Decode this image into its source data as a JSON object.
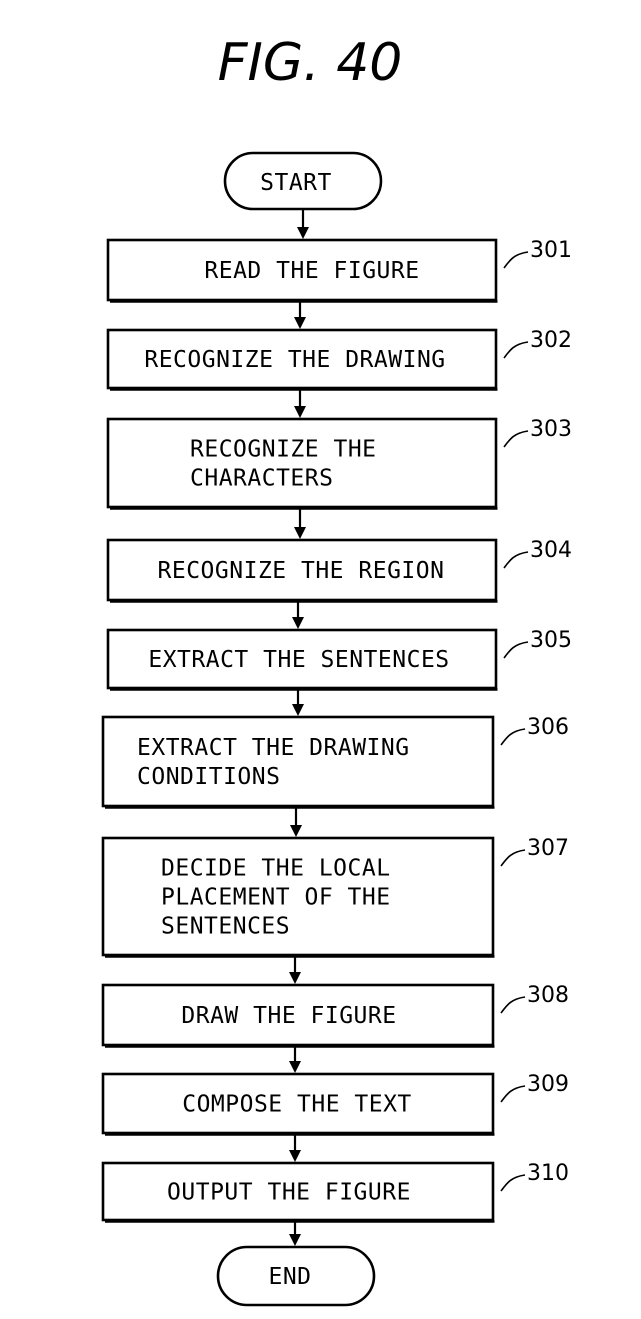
{
  "figure": {
    "title": "FIG. 40"
  },
  "flow": {
    "start_label": "START",
    "end_label": "END",
    "steps": [
      {
        "ref": "301",
        "lines": [
          "READ THE FIGURE"
        ]
      },
      {
        "ref": "302",
        "lines": [
          "RECOGNIZE THE DRAWING"
        ]
      },
      {
        "ref": "303",
        "lines": [
          "RECOGNIZE THE",
          "CHARACTERS"
        ]
      },
      {
        "ref": "304",
        "lines": [
          "RECOGNIZE THE REGION"
        ]
      },
      {
        "ref": "305",
        "lines": [
          "EXTRACT THE SENTENCES"
        ]
      },
      {
        "ref": "306",
        "lines": [
          "EXTRACT THE DRAWING",
          "CONDITIONS"
        ]
      },
      {
        "ref": "307",
        "lines": [
          "DECIDE THE LOCAL",
          "PLACEMENT OF THE",
          "SENTENCES"
        ]
      },
      {
        "ref": "308",
        "lines": [
          "DRAW THE FIGURE"
        ]
      },
      {
        "ref": "309",
        "lines": [
          "COMPOSE THE TEXT"
        ]
      },
      {
        "ref": "310",
        "lines": [
          "OUTPUT THE FIGURE"
        ]
      }
    ]
  }
}
